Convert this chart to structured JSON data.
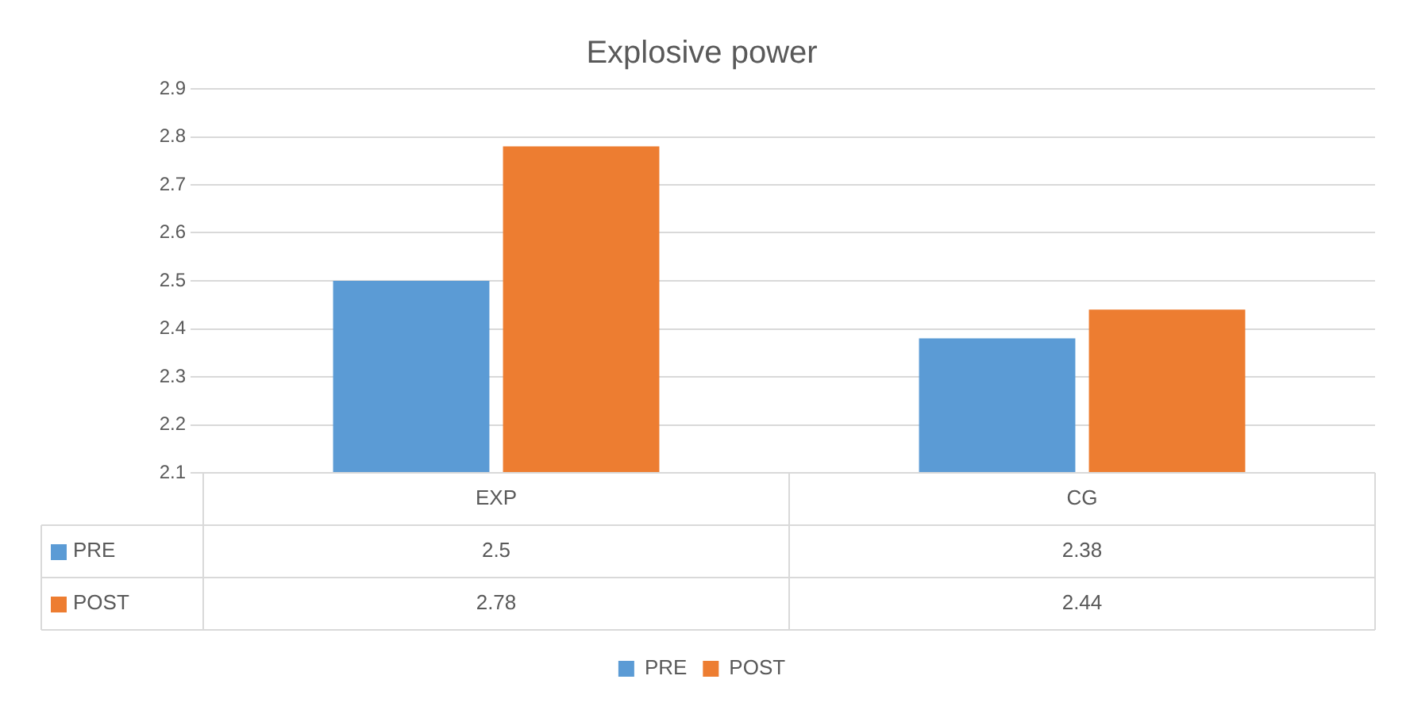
{
  "chart_data": {
    "type": "bar",
    "title": "Explosive power",
    "categories": [
      "EXP",
      "CG"
    ],
    "series": [
      {
        "name": "PRE",
        "color": "#5b9bd5",
        "values": [
          2.5,
          2.38
        ]
      },
      {
        "name": "POST",
        "color": "#ed7d31",
        "values": [
          2.78,
          2.44
        ]
      }
    ],
    "ylim": [
      2.1,
      2.9
    ],
    "yticks": [
      2.1,
      2.2,
      2.3,
      2.4,
      2.5,
      2.6,
      2.7,
      2.8,
      2.9
    ],
    "grid": "y",
    "legend": "bottom",
    "data_labels": true
  }
}
